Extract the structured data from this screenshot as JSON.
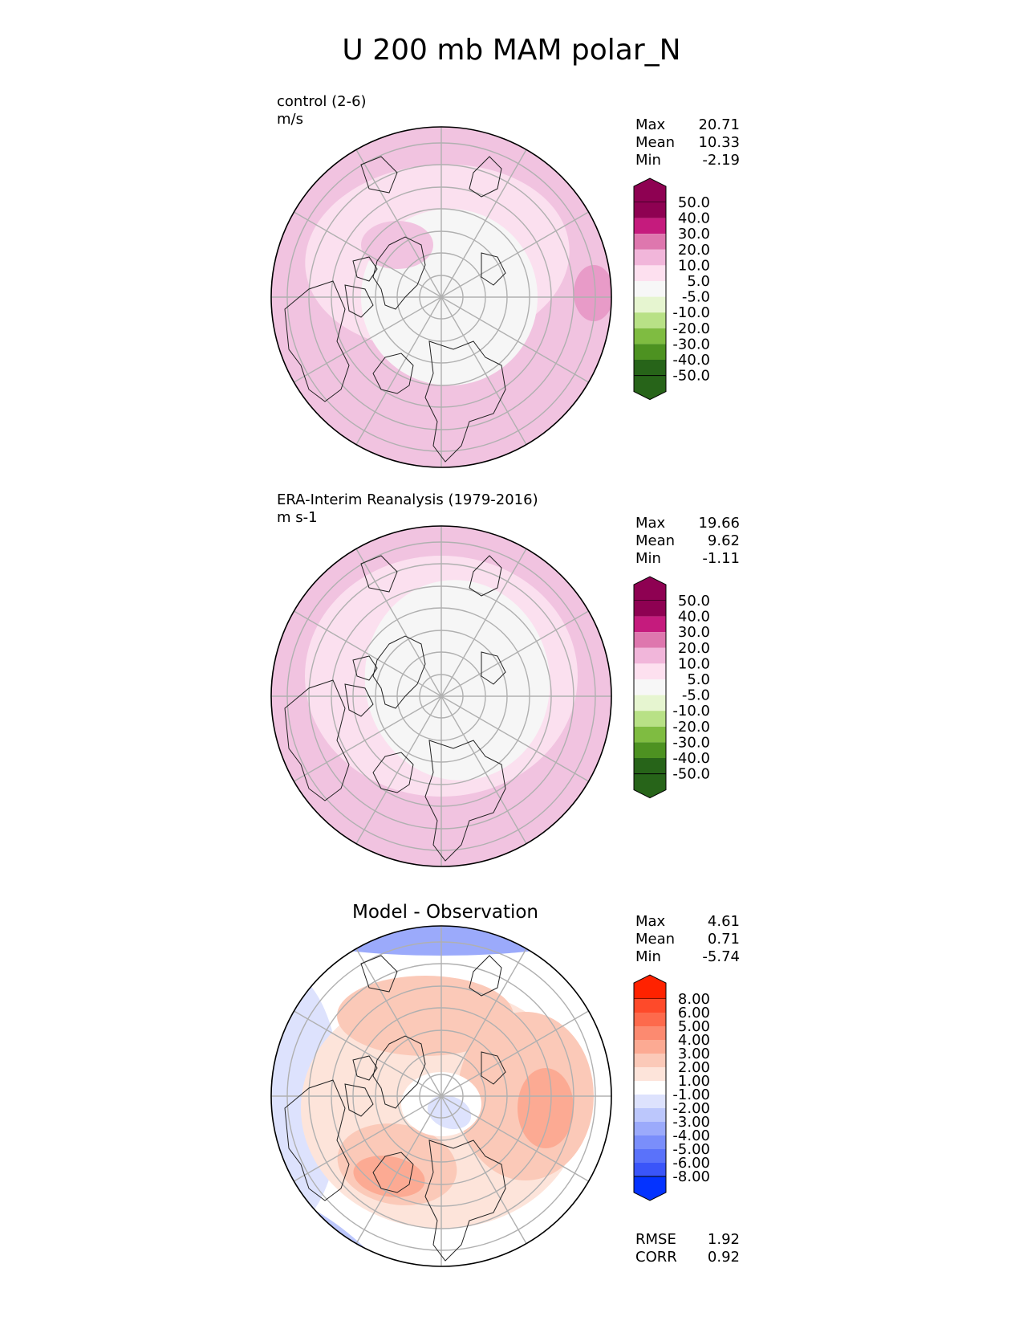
{
  "title": "U 200 mb MAM polar_N",
  "chart_data": [
    {
      "type": "heatmap",
      "projection": "north-polar-stereographic",
      "title": "control (2-6)",
      "units": "m/s",
      "stats": [
        {
          "label": "Max",
          "value": "20.71"
        },
        {
          "label": "Mean",
          "value": "10.33"
        },
        {
          "label": "Min",
          "value": "-2.19"
        }
      ],
      "colorbar": {
        "ticks": [
          "50.0",
          "40.0",
          "30.0",
          "20.0",
          "10.0",
          "5.0",
          "-5.0",
          "-10.0",
          "-20.0",
          "-30.0",
          "-40.0",
          "-50.0"
        ],
        "colors": [
          "#8e0152",
          "#c51b7d",
          "#de77ae",
          "#f1b6da",
          "#fde0ef",
          "#f7f7f7",
          "#e6f5d0",
          "#b8e186",
          "#7fbc41",
          "#4d9221",
          "#276419"
        ],
        "extend_top": "#8e0152",
        "extend_bottom": "#276419"
      }
    },
    {
      "type": "heatmap",
      "projection": "north-polar-stereographic",
      "title": "ERA-Interim Reanalysis (1979-2016)",
      "units": "m s-1",
      "stats": [
        {
          "label": "Max",
          "value": "19.66"
        },
        {
          "label": "Mean",
          "value": "9.62"
        },
        {
          "label": "Min",
          "value": "-1.11"
        }
      ],
      "colorbar": {
        "ticks": [
          "50.0",
          "40.0",
          "30.0",
          "20.0",
          "10.0",
          "5.0",
          "-5.0",
          "-10.0",
          "-20.0",
          "-30.0",
          "-40.0",
          "-50.0"
        ],
        "colors": [
          "#8e0152",
          "#c51b7d",
          "#de77ae",
          "#f1b6da",
          "#fde0ef",
          "#f7f7f7",
          "#e6f5d0",
          "#b8e186",
          "#7fbc41",
          "#4d9221",
          "#276419"
        ],
        "extend_top": "#8e0152",
        "extend_bottom": "#276419"
      }
    },
    {
      "type": "heatmap",
      "projection": "north-polar-stereographic",
      "title": "Model - Observation",
      "stats": [
        {
          "label": "Max",
          "value": "4.61"
        },
        {
          "label": "Mean",
          "value": "0.71"
        },
        {
          "label": "Min",
          "value": "-5.74"
        }
      ],
      "metrics": [
        {
          "label": "RMSE",
          "value": "1.92"
        },
        {
          "label": "CORR",
          "value": "0.92"
        }
      ],
      "colorbar": {
        "ticks": [
          "8.00",
          "6.00",
          "5.00",
          "4.00",
          "3.00",
          "2.00",
          "1.00",
          "-1.00",
          "-2.00",
          "-3.00",
          "-4.00",
          "-5.00",
          "-6.00",
          "-8.00"
        ],
        "colors": [
          "#fe4a2a",
          "#fd6a4c",
          "#fc8a70",
          "#fcaa93",
          "#fbc9b8",
          "#fde4da",
          "#ffffff",
          "#dde2fd",
          "#bcc7fc",
          "#9baafb",
          "#7a8efb",
          "#5a72fa",
          "#3a55f9"
        ],
        "extend_top": "#ff2200",
        "extend_bottom": "#0433ff"
      }
    }
  ]
}
